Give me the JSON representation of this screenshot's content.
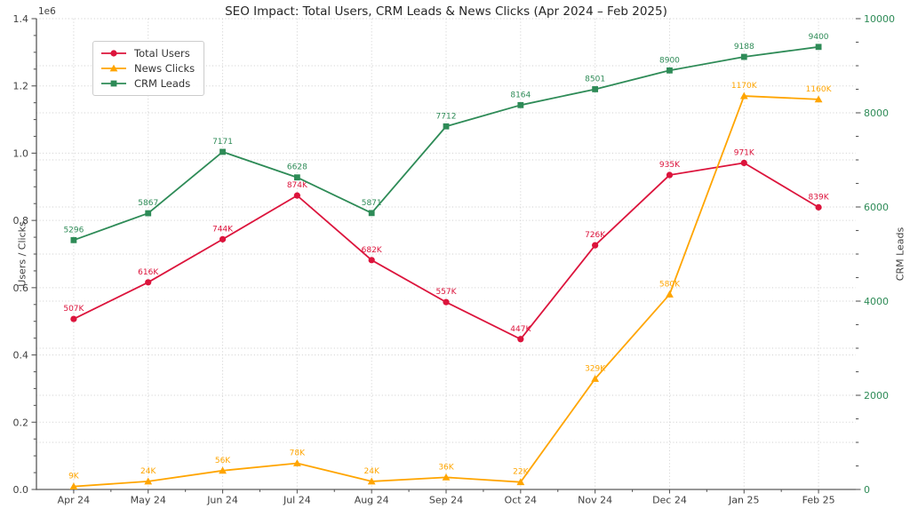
{
  "chart_data": {
    "type": "line",
    "title": "SEO Impact: Total Users, CRM Leads & News Clicks (Apr 2024 – Feb 2025)",
    "categories": [
      "Apr 24",
      "May 24",
      "Jun 24",
      "Jul 24",
      "Aug 24",
      "Sep 24",
      "Oct 24",
      "Nov 24",
      "Dec 24",
      "Jan 25",
      "Feb 25"
    ],
    "grid": true,
    "legend_position": "upper-left",
    "left_axis": {
      "label": "Users / Clicks",
      "offset_text": "1e6",
      "min": 0,
      "max": 1400000,
      "tick_labels": [
        "0.0",
        "0.2",
        "0.4",
        "0.6",
        "0.8",
        "1.0",
        "1.2",
        "1.4"
      ],
      "tick_step": 200000,
      "minor_step": 50000,
      "tick_color": "#404040"
    },
    "right_axis": {
      "label": "CRM Leads",
      "min": 0,
      "max": 10000,
      "tick_labels": [
        "0",
        "2000",
        "4000",
        "6000",
        "8000",
        "10000"
      ],
      "tick_step": 2000,
      "minor_step": 500,
      "grid_step": 1000,
      "tick_color": "#2E8B57"
    },
    "series": [
      {
        "name": "Total Users",
        "color": "#DC143C",
        "marker": "circle",
        "axis": "left",
        "values": [
          507000,
          616000,
          744000,
          874000,
          682000,
          557000,
          447000,
          726000,
          935000,
          971000,
          839000
        ],
        "labels": [
          "507K",
          "616K",
          "744K",
          "874K",
          "682K",
          "557K",
          "447K",
          "726K",
          "935K",
          "971K",
          "839K"
        ]
      },
      {
        "name": "News Clicks",
        "color": "#FFA500",
        "marker": "triangle",
        "axis": "left",
        "values": [
          9000,
          24000,
          56000,
          78000,
          24000,
          36000,
          22000,
          329000,
          580000,
          1170000,
          1160000
        ],
        "labels": [
          "9K",
          "24K",
          "56K",
          "78K",
          "24K",
          "36K",
          "22K",
          "329K",
          "580K",
          "1170K",
          "1160K"
        ]
      },
      {
        "name": "CRM Leads",
        "color": "#2E8B57",
        "marker": "square",
        "axis": "right",
        "values": [
          5296,
          5867,
          7171,
          6628,
          5871,
          7712,
          8164,
          8501,
          8900,
          9188,
          9400
        ],
        "labels": [
          "5296",
          "5867",
          "7171",
          "6628",
          "5871",
          "7712",
          "8164",
          "8501",
          "8900",
          "9188",
          "9400"
        ]
      }
    ]
  }
}
